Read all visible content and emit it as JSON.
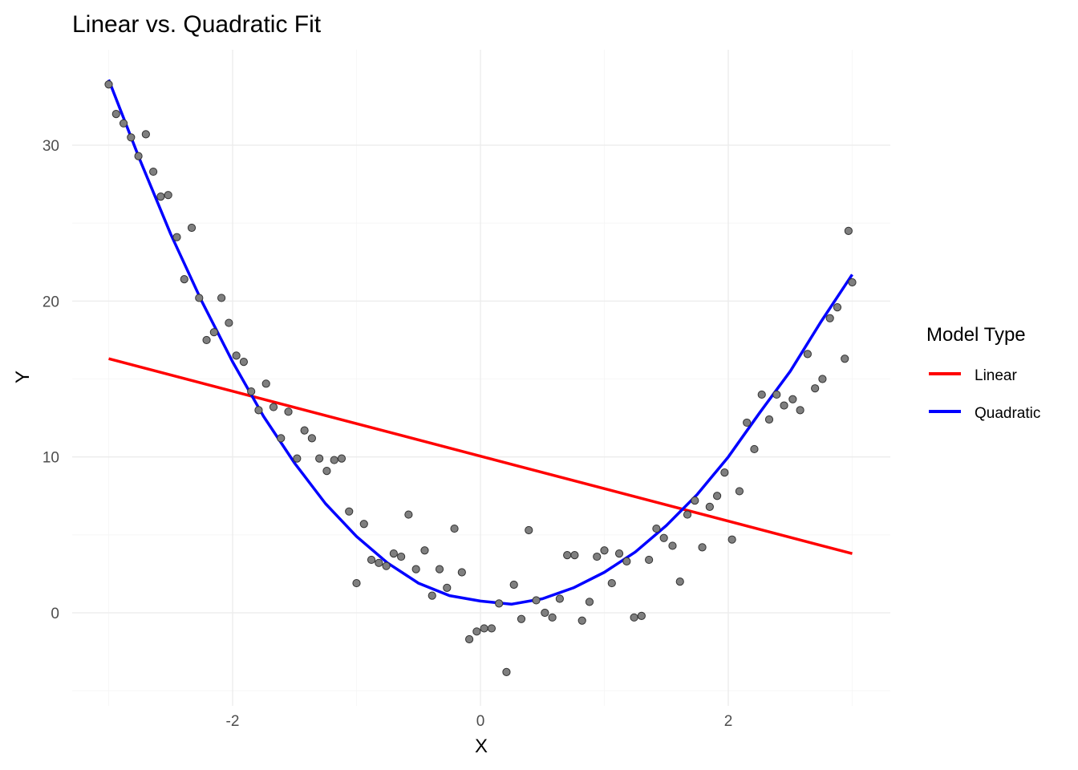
{
  "chart_data": {
    "type": "scatter",
    "title": "Linear vs. Quadratic Fit",
    "xlabel": "X",
    "ylabel": "Y",
    "xlim": [
      -3.3,
      3.3
    ],
    "ylim": [
      -5,
      35
    ],
    "x_ticks": [
      -2,
      0,
      2
    ],
    "x_tick_labels": [
      "-2",
      "0",
      "2"
    ],
    "y_ticks": [
      0,
      10,
      20,
      30
    ],
    "y_tick_labels": [
      "0",
      "10",
      "20",
      "30"
    ],
    "grid": true,
    "legend": {
      "title": "Model Type",
      "position": "right",
      "entries": [
        {
          "label": "Linear",
          "color": "#ff0000"
        },
        {
          "label": "Quadratic",
          "color": "#0000ff"
        }
      ]
    },
    "point_color": "#7f7f7f",
    "points": [
      {
        "x": -3.0,
        "y": 33.9
      },
      {
        "x": -2.94,
        "y": 32.0
      },
      {
        "x": -2.88,
        "y": 31.4
      },
      {
        "x": -2.82,
        "y": 30.5
      },
      {
        "x": -2.76,
        "y": 29.3
      },
      {
        "x": -2.7,
        "y": 30.7
      },
      {
        "x": -2.64,
        "y": 28.3
      },
      {
        "x": -2.58,
        "y": 26.7
      },
      {
        "x": -2.52,
        "y": 26.8
      },
      {
        "x": -2.45,
        "y": 24.1
      },
      {
        "x": -2.39,
        "y": 21.4
      },
      {
        "x": -2.33,
        "y": 24.7
      },
      {
        "x": -2.27,
        "y": 20.2
      },
      {
        "x": -2.21,
        "y": 17.5
      },
      {
        "x": -2.15,
        "y": 18.0
      },
      {
        "x": -2.09,
        "y": 20.2
      },
      {
        "x": -2.03,
        "y": 18.6
      },
      {
        "x": -1.97,
        "y": 16.5
      },
      {
        "x": -1.91,
        "y": 16.1
      },
      {
        "x": -1.85,
        "y": 14.2
      },
      {
        "x": -1.79,
        "y": 13.0
      },
      {
        "x": -1.73,
        "y": 14.7
      },
      {
        "x": -1.67,
        "y": 13.2
      },
      {
        "x": -1.61,
        "y": 11.2
      },
      {
        "x": -1.55,
        "y": 12.9
      },
      {
        "x": -1.48,
        "y": 9.9
      },
      {
        "x": -1.42,
        "y": 11.7
      },
      {
        "x": -1.36,
        "y": 11.2
      },
      {
        "x": -1.3,
        "y": 9.9
      },
      {
        "x": -1.24,
        "y": 9.1
      },
      {
        "x": -1.18,
        "y": 9.8
      },
      {
        "x": -1.12,
        "y": 9.9
      },
      {
        "x": -1.06,
        "y": 6.5
      },
      {
        "x": -1.0,
        "y": 1.9
      },
      {
        "x": -0.94,
        "y": 5.7
      },
      {
        "x": -0.88,
        "y": 3.4
      },
      {
        "x": -0.82,
        "y": 3.2
      },
      {
        "x": -0.76,
        "y": 3.0
      },
      {
        "x": -0.7,
        "y": 3.8
      },
      {
        "x": -0.64,
        "y": 3.6
      },
      {
        "x": -0.58,
        "y": 6.3
      },
      {
        "x": -0.52,
        "y": 2.8
      },
      {
        "x": -0.45,
        "y": 4.0
      },
      {
        "x": -0.39,
        "y": 1.1
      },
      {
        "x": -0.33,
        "y": 2.8
      },
      {
        "x": -0.27,
        "y": 1.6
      },
      {
        "x": -0.21,
        "y": 5.4
      },
      {
        "x": -0.15,
        "y": 2.6
      },
      {
        "x": -0.09,
        "y": -1.7
      },
      {
        "x": -0.03,
        "y": -1.2
      },
      {
        "x": 0.03,
        "y": -1.0
      },
      {
        "x": 0.09,
        "y": -1.0
      },
      {
        "x": 0.15,
        "y": 0.6
      },
      {
        "x": 0.21,
        "y": -3.8
      },
      {
        "x": 0.27,
        "y": 1.8
      },
      {
        "x": 0.33,
        "y": -0.4
      },
      {
        "x": 0.39,
        "y": 5.3
      },
      {
        "x": 0.45,
        "y": 0.8
      },
      {
        "x": 0.52,
        "y": 0.0
      },
      {
        "x": 0.58,
        "y": -0.3
      },
      {
        "x": 0.64,
        "y": 0.9
      },
      {
        "x": 0.7,
        "y": 3.7
      },
      {
        "x": 0.76,
        "y": 3.7
      },
      {
        "x": 0.82,
        "y": -0.5
      },
      {
        "x": 0.88,
        "y": 0.7
      },
      {
        "x": 0.94,
        "y": 3.6
      },
      {
        "x": 1.0,
        "y": 4.0
      },
      {
        "x": 1.06,
        "y": 1.9
      },
      {
        "x": 1.12,
        "y": 3.8
      },
      {
        "x": 1.18,
        "y": 3.3
      },
      {
        "x": 1.24,
        "y": -0.3
      },
      {
        "x": 1.3,
        "y": -0.2
      },
      {
        "x": 1.36,
        "y": 3.4
      },
      {
        "x": 1.42,
        "y": 5.4
      },
      {
        "x": 1.48,
        "y": 4.8
      },
      {
        "x": 1.55,
        "y": 4.3
      },
      {
        "x": 1.61,
        "y": 2.0
      },
      {
        "x": 1.67,
        "y": 6.3
      },
      {
        "x": 1.73,
        "y": 7.2
      },
      {
        "x": 1.79,
        "y": 4.2
      },
      {
        "x": 1.85,
        "y": 6.8
      },
      {
        "x": 1.91,
        "y": 7.5
      },
      {
        "x": 1.97,
        "y": 9.0
      },
      {
        "x": 2.03,
        "y": 4.7
      },
      {
        "x": 2.09,
        "y": 7.8
      },
      {
        "x": 2.15,
        "y": 12.2
      },
      {
        "x": 2.21,
        "y": 10.5
      },
      {
        "x": 2.27,
        "y": 14.0
      },
      {
        "x": 2.33,
        "y": 12.4
      },
      {
        "x": 2.39,
        "y": 14.0
      },
      {
        "x": 2.45,
        "y": 13.3
      },
      {
        "x": 2.52,
        "y": 13.7
      },
      {
        "x": 2.58,
        "y": 13.0
      },
      {
        "x": 2.64,
        "y": 16.6
      },
      {
        "x": 2.7,
        "y": 14.4
      },
      {
        "x": 2.76,
        "y": 15.0
      },
      {
        "x": 2.82,
        "y": 18.9
      },
      {
        "x": 2.88,
        "y": 19.6
      },
      {
        "x": 2.94,
        "y": 16.3
      },
      {
        "x": 2.97,
        "y": 24.5
      },
      {
        "x": 3.0,
        "y": 21.2
      }
    ],
    "series": [
      {
        "name": "Linear",
        "color": "#ff0000",
        "type": "line",
        "x": [
          -3,
          3
        ],
        "y": [
          16.3,
          3.8
        ]
      },
      {
        "name": "Quadratic",
        "color": "#0000ff",
        "type": "line",
        "x": [
          -3.0,
          -2.75,
          -2.5,
          -2.25,
          -2.0,
          -1.75,
          -1.5,
          -1.25,
          -1.0,
          -0.75,
          -0.5,
          -0.25,
          0.0,
          0.25,
          0.5,
          0.75,
          1.0,
          1.25,
          1.5,
          1.75,
          2.0,
          2.25,
          2.5,
          2.75,
          3.0
        ],
        "y": [
          34.2,
          29.1,
          24.3,
          20.0,
          16.1,
          12.6,
          9.6,
          7.0,
          4.9,
          3.2,
          1.9,
          1.1,
          0.75,
          0.55,
          0.9,
          1.6,
          2.6,
          3.9,
          5.6,
          7.6,
          10.0,
          12.8,
          15.5,
          18.7,
          21.7
        ]
      }
    ]
  }
}
